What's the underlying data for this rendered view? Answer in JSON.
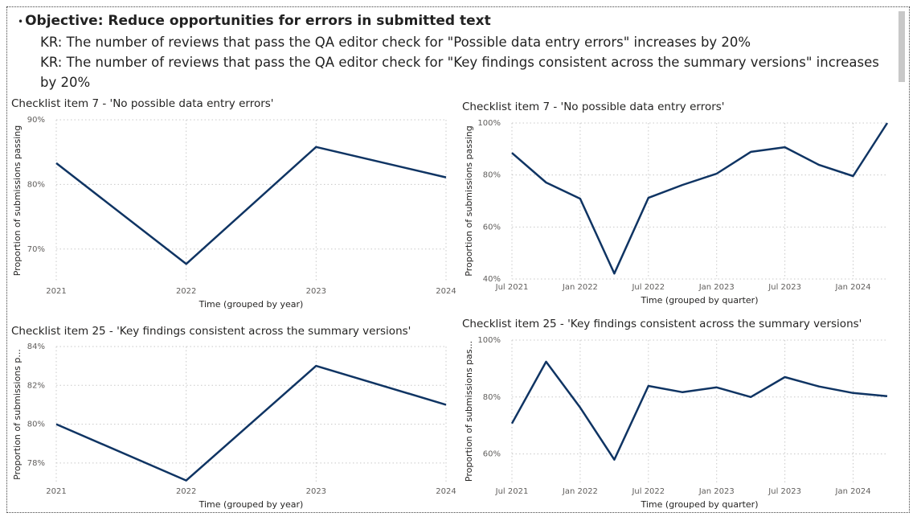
{
  "header": {
    "objective": "Objective: Reduce opportunities for errors in submitted text",
    "key_results": [
      "KR: The number of reviews that pass the QA editor check for \"Possible data entry errors\" increases by 20%",
      "KR: The number of reviews that pass the QA editor check for \"Key findings consistent across the summary versions\" increases by 20%"
    ]
  },
  "chart_data": [
    {
      "type": "line",
      "title": "Checklist item 7 - 'No possible data entry errors'",
      "x_label": "Time (grouped by year)",
      "y_label": "Proportion of submissions passing",
      "x": [
        2021,
        2022,
        2023,
        2024
      ],
      "values": [
        83.3,
        67.7,
        85.8,
        81.1
      ],
      "color": "#0f3463",
      "xlim": [
        2021,
        2024
      ],
      "xticks": [
        2021,
        2022,
        2023,
        2024
      ],
      "ylim": [
        65,
        90
      ],
      "yticks": [
        {
          "value": 70,
          "label": "70%"
        },
        {
          "value": 80,
          "label": "80%"
        },
        {
          "value": 90,
          "label": "90%"
        }
      ],
      "grid": true
    },
    {
      "type": "line",
      "title": "Checklist item 7 - 'No possible data entry errors'",
      "x_label": "Time (grouped by quarter)",
      "y_label": "Proportion of submissions passing",
      "categories": [
        "Jul 2021",
        null,
        "Jan 2022",
        null,
        "Jul 2022",
        null,
        "Jan 2023",
        null,
        "Jul 2023",
        null,
        "Jan 2024",
        null
      ],
      "values": [
        88.5,
        77.1,
        70.9,
        42.1,
        71.2,
        76.2,
        80.5,
        88.9,
        90.7,
        83.9,
        79.6,
        100
      ],
      "color": "#0f3463",
      "ylim": [
        40,
        100
      ],
      "yticks": [
        {
          "value": 40,
          "label": "40%"
        },
        {
          "value": 60,
          "label": "60%"
        },
        {
          "value": 80,
          "label": "80%"
        },
        {
          "value": 100,
          "label": "100%"
        }
      ],
      "grid": true
    },
    {
      "type": "line",
      "title": "Checklist item 25 - 'Key findings consistent across the summary versions'",
      "x_label": "Time (grouped by year)",
      "y_label": "Proportion of submissions p...",
      "x": [
        2021,
        2022,
        2023,
        2024
      ],
      "values": [
        80.0,
        77.1,
        83.0,
        81.0
      ],
      "color": "#0f3463",
      "xlim": [
        2021,
        2024
      ],
      "xticks": [
        2021,
        2022,
        2023,
        2024
      ],
      "ylim": [
        77,
        84
      ],
      "yticks": [
        {
          "value": 78,
          "label": "78%"
        },
        {
          "value": 80,
          "label": "80%"
        },
        {
          "value": 82,
          "label": "82%"
        },
        {
          "value": 84,
          "label": "84%"
        }
      ],
      "grid": true
    },
    {
      "type": "line",
      "title": "Checklist item 25 - 'Key findings consistent across the summary versions'",
      "x_label": "Time (grouped by quarter)",
      "y_label": "Proportion of submissions pas...",
      "categories": [
        "Jul 2021",
        null,
        "Jan 2022",
        null,
        "Jul 2022",
        null,
        "Jan 2023",
        null,
        "Jul 2023",
        null,
        "Jan 2024",
        null
      ],
      "values": [
        70.7,
        92.4,
        76.3,
        58.0,
        83.9,
        81.7,
        83.4,
        80.0,
        87.0,
        83.7,
        81.4,
        80.3
      ],
      "color": "#0f3463",
      "ylim": [
        50,
        100
      ],
      "yticks": [
        {
          "value": 60,
          "label": "60%"
        },
        {
          "value": 80,
          "label": "80%"
        },
        {
          "value": 100,
          "label": "100%"
        }
      ],
      "grid": true
    }
  ]
}
